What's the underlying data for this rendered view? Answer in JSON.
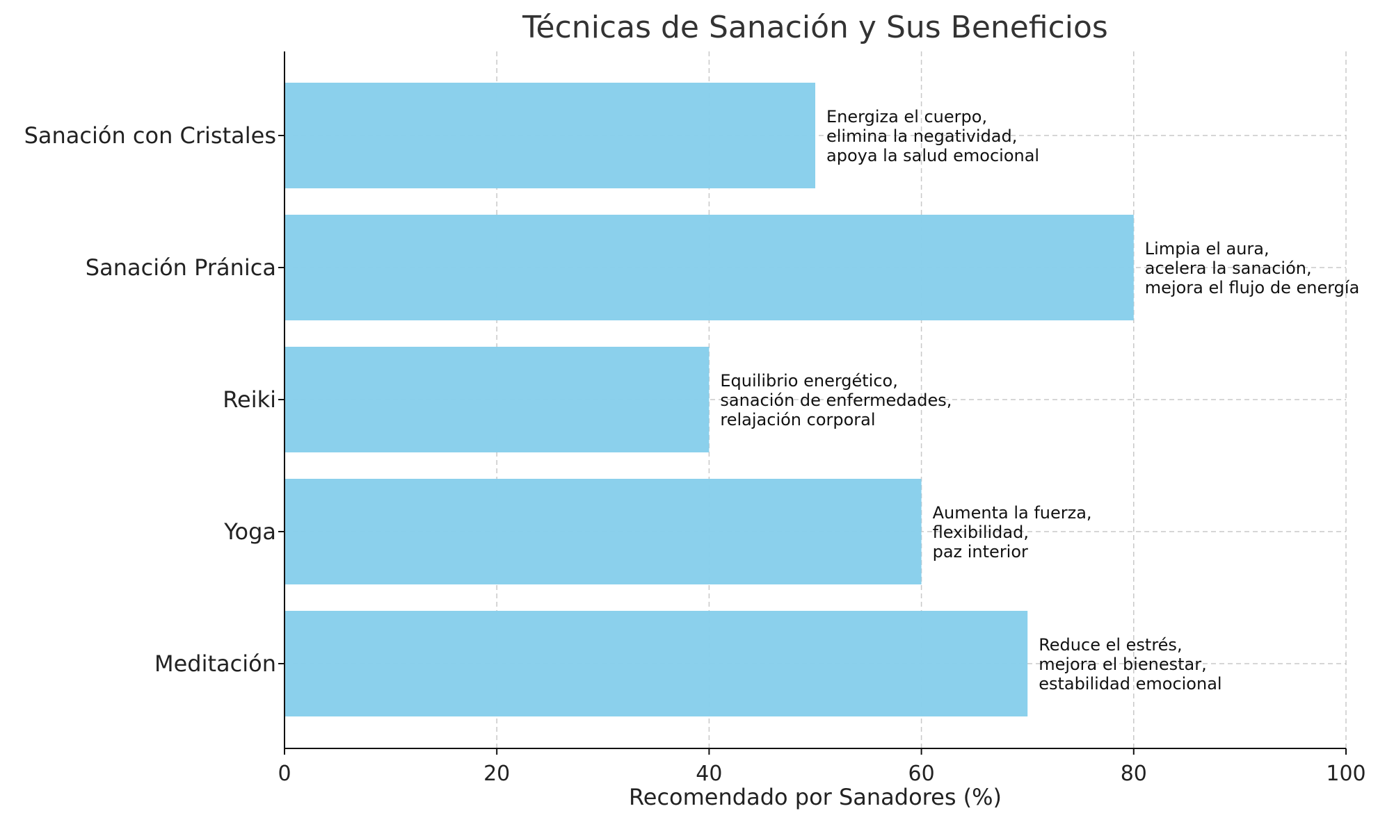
{
  "chart_data": {
    "type": "bar",
    "orientation": "horizontal",
    "title": "Técnicas de Sanación y Sus Beneficios",
    "xlabel": "Recomendado por Sanadores (%)",
    "ylabel": "",
    "xlim": [
      0,
      100
    ],
    "xticks": [
      "0",
      "20",
      "40",
      "60",
      "80",
      "100"
    ],
    "grid": true,
    "bar_color": "#87CEEB",
    "categories": [
      "Meditación",
      "Yoga",
      "Reiki",
      "Sanación Pránica",
      "Sanación con Cristales"
    ],
    "values": [
      70,
      60,
      40,
      80,
      50
    ],
    "annotations": [
      [
        "Reduce el estrés,",
        "mejora el bienestar,",
        "estabilidad emocional"
      ],
      [
        "Aumenta la fuerza,",
        "flexibilidad,",
        "paz interior"
      ],
      [
        "Equilibrio energético,",
        "sanación de enfermedades,",
        "relajación corporal"
      ],
      [
        "Limpia el aura,",
        "acelera la sanación,",
        "mejora el flujo de energía"
      ],
      [
        "Energiza el cuerpo,",
        "elimina la negatividad,",
        "apoya la salud emocional"
      ]
    ]
  }
}
